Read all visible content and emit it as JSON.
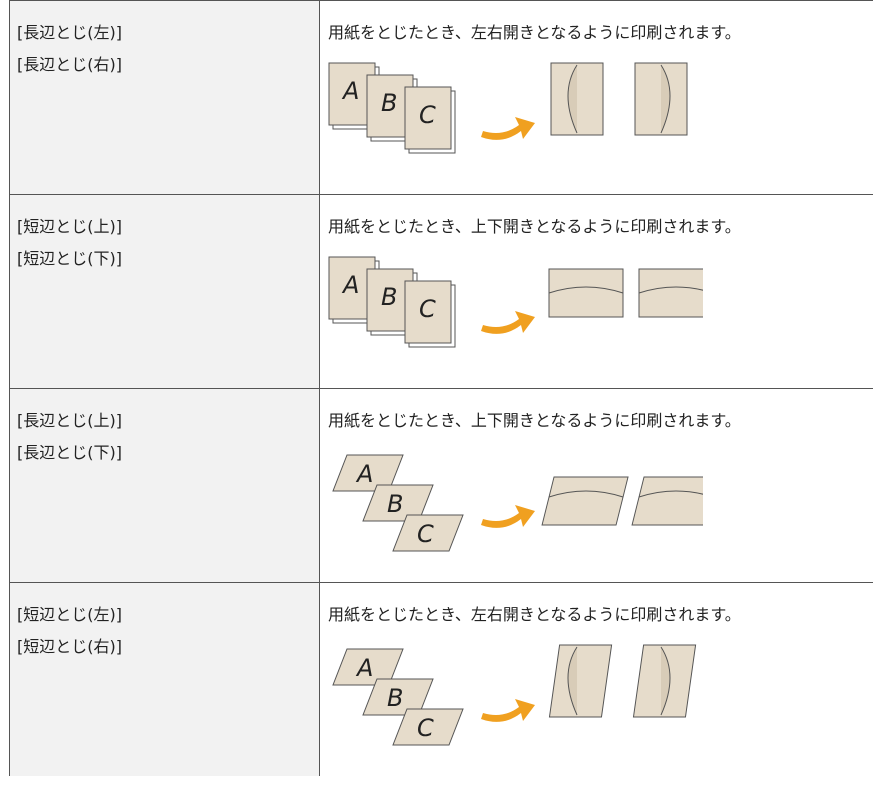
{
  "table": {
    "rows": [
      {
        "names": [
          "[長辺とじ(左)]",
          "[長辺とじ(右)]"
        ],
        "description": "用紙をとじたとき、左右開きとなるように印刷されます。",
        "sheets": [
          "A",
          "B",
          "C"
        ]
      },
      {
        "names": [
          "[短辺とじ(上)]",
          "[短辺とじ(下)]"
        ],
        "description": "用紙をとじたとき、上下開きとなるように印刷されます。",
        "sheets": [
          "A",
          "B",
          "C"
        ]
      },
      {
        "names": [
          "[長辺とじ(上)]",
          "[長辺とじ(下)]"
        ],
        "description": "用紙をとじたとき、上下開きとなるように印刷されます。",
        "sheets": [
          "A",
          "B",
          "C"
        ]
      },
      {
        "names": [
          "[短辺とじ(左)]",
          "[短辺とじ(右)]"
        ],
        "description": "用紙をとじたとき、左右開きとなるように印刷されます。",
        "sheets": [
          "A",
          "B",
          "C"
        ]
      }
    ]
  }
}
